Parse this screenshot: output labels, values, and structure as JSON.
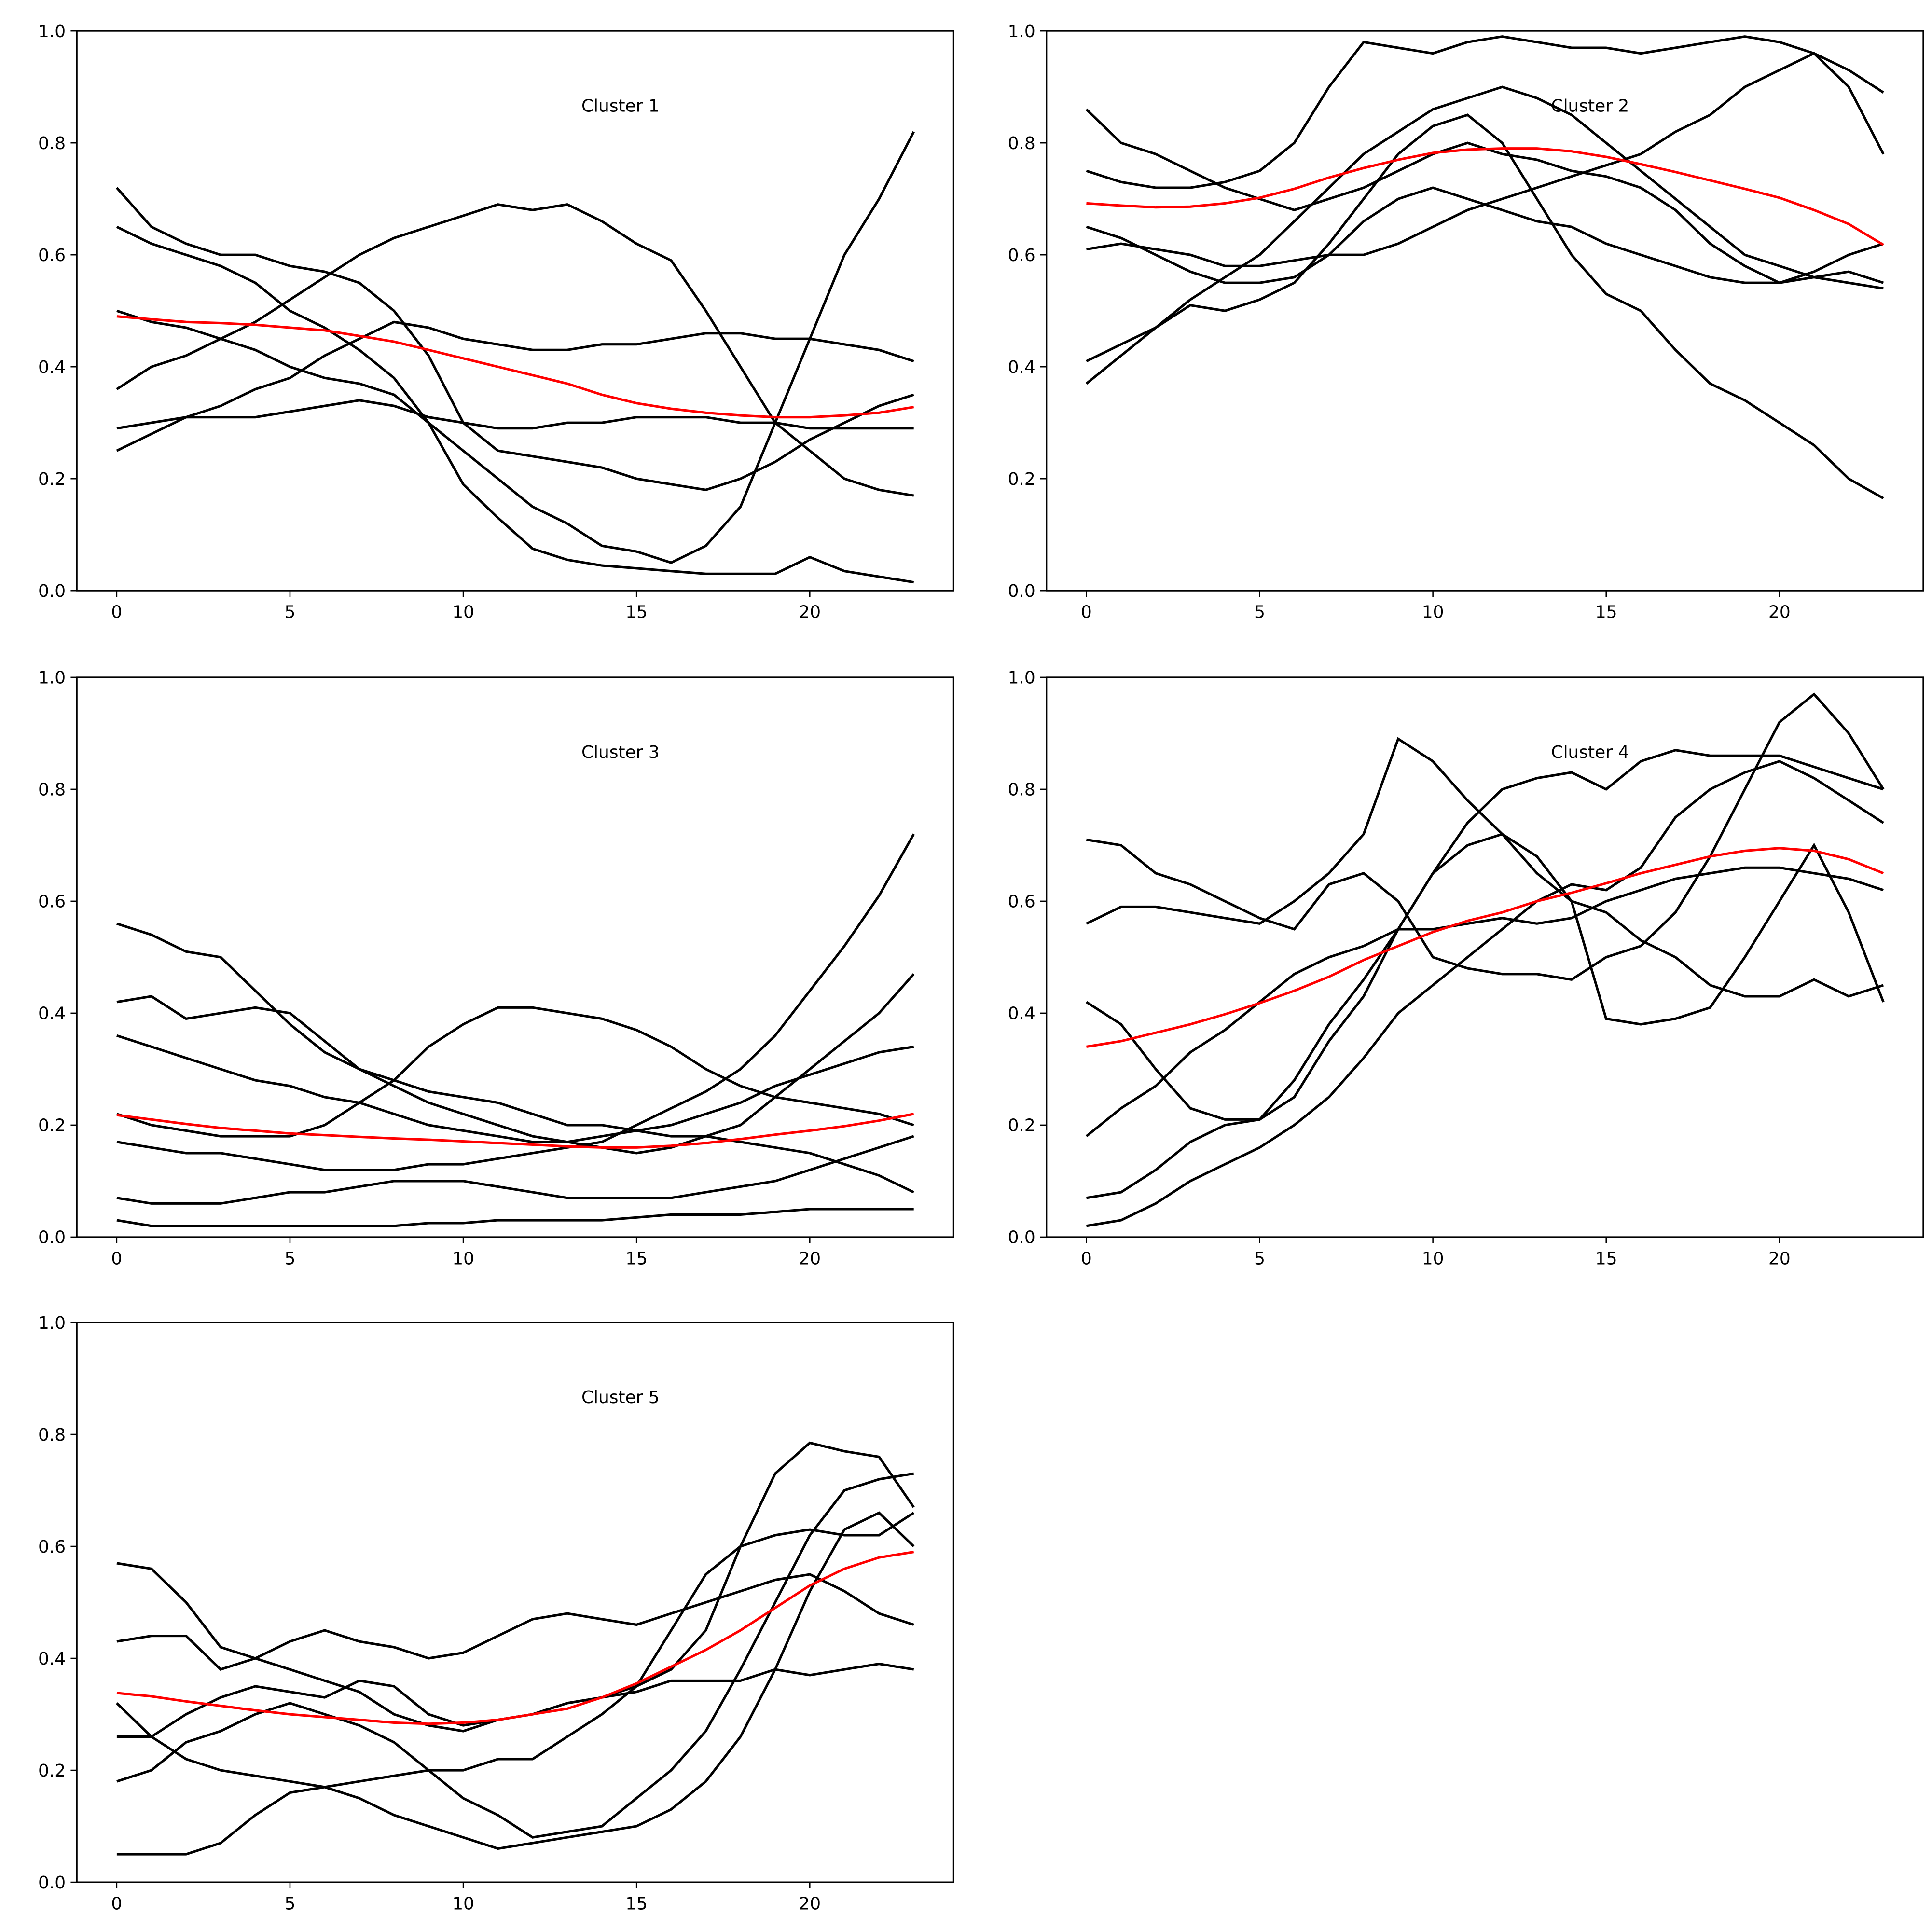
{
  "chart_data": [
    {
      "type": "line",
      "title": "Cluster 1",
      "xlim": [
        -1.15,
        24.15
      ],
      "ylim": [
        0,
        1
      ],
      "xticks": [
        "0",
        "5",
        "10",
        "15",
        "20"
      ],
      "yticks": [
        "0.0",
        "0.2",
        "0.4",
        "0.6",
        "0.8",
        "1.0"
      ],
      "mean_color": "#ff0000",
      "line_color": "#000000",
      "mean": [
        0.49,
        0.485,
        0.48,
        0.478,
        0.475,
        0.47,
        0.465,
        0.455,
        0.445,
        0.43,
        0.415,
        0.4,
        0.385,
        0.37,
        0.35,
        0.335,
        0.325,
        0.318,
        0.313,
        0.31,
        0.31,
        0.313,
        0.318,
        0.328
      ],
      "series": [
        [
          0.72,
          0.65,
          0.62,
          0.6,
          0.6,
          0.58,
          0.57,
          0.55,
          0.5,
          0.42,
          0.3,
          0.25,
          0.24,
          0.23,
          0.22,
          0.2,
          0.19,
          0.18,
          0.2,
          0.23,
          0.27,
          0.3,
          0.33,
          0.35
        ],
        [
          0.65,
          0.62,
          0.6,
          0.58,
          0.55,
          0.5,
          0.47,
          0.43,
          0.38,
          0.3,
          0.19,
          0.13,
          0.075,
          0.055,
          0.045,
          0.04,
          0.035,
          0.03,
          0.03,
          0.03,
          0.06,
          0.035,
          0.025,
          0.015
        ],
        [
          0.5,
          0.48,
          0.47,
          0.45,
          0.43,
          0.4,
          0.38,
          0.37,
          0.35,
          0.3,
          0.25,
          0.2,
          0.15,
          0.12,
          0.08,
          0.07,
          0.05,
          0.08,
          0.15,
          0.3,
          0.45,
          0.6,
          0.7,
          0.82
        ],
        [
          0.36,
          0.4,
          0.42,
          0.45,
          0.48,
          0.52,
          0.56,
          0.6,
          0.63,
          0.65,
          0.67,
          0.69,
          0.68,
          0.69,
          0.66,
          0.62,
          0.59,
          0.5,
          0.4,
          0.3,
          0.25,
          0.2,
          0.18,
          0.17
        ],
        [
          0.29,
          0.3,
          0.31,
          0.31,
          0.31,
          0.32,
          0.33,
          0.34,
          0.33,
          0.31,
          0.3,
          0.29,
          0.29,
          0.3,
          0.3,
          0.31,
          0.31,
          0.31,
          0.3,
          0.3,
          0.29,
          0.29,
          0.29,
          0.29
        ],
        [
          0.25,
          0.28,
          0.31,
          0.33,
          0.36,
          0.38,
          0.42,
          0.45,
          0.48,
          0.47,
          0.45,
          0.44,
          0.43,
          0.43,
          0.44,
          0.44,
          0.45,
          0.46,
          0.46,
          0.45,
          0.45,
          0.44,
          0.43,
          0.41
        ]
      ]
    },
    {
      "type": "line",
      "title": "Cluster 2",
      "xlim": [
        -1.15,
        24.15
      ],
      "ylim": [
        0,
        1
      ],
      "xticks": [
        "0",
        "5",
        "10",
        "15",
        "20"
      ],
      "yticks": [
        "0.0",
        "0.2",
        "0.4",
        "0.6",
        "0.8",
        "1.0"
      ],
      "mean_color": "#ff0000",
      "line_color": "#000000",
      "mean": [
        0.692,
        0.688,
        0.685,
        0.686,
        0.692,
        0.702,
        0.718,
        0.738,
        0.755,
        0.77,
        0.782,
        0.788,
        0.79,
        0.79,
        0.785,
        0.775,
        0.762,
        0.748,
        0.733,
        0.718,
        0.702,
        0.68,
        0.655,
        0.618
      ],
      "series": [
        [
          0.37,
          0.42,
          0.47,
          0.52,
          0.56,
          0.6,
          0.66,
          0.72,
          0.78,
          0.82,
          0.86,
          0.88,
          0.9,
          0.88,
          0.85,
          0.8,
          0.75,
          0.7,
          0.65,
          0.6,
          0.58,
          0.56,
          0.55,
          0.54
        ],
        [
          0.41,
          0.44,
          0.47,
          0.51,
          0.5,
          0.52,
          0.55,
          0.62,
          0.7,
          0.78,
          0.83,
          0.85,
          0.8,
          0.7,
          0.6,
          0.53,
          0.5,
          0.43,
          0.37,
          0.34,
          0.3,
          0.26,
          0.2,
          0.165
        ],
        [
          0.75,
          0.73,
          0.72,
          0.72,
          0.73,
          0.75,
          0.8,
          0.9,
          0.98,
          0.97,
          0.96,
          0.98,
          0.99,
          0.98,
          0.97,
          0.97,
          0.96,
          0.97,
          0.98,
          0.99,
          0.98,
          0.96,
          0.93,
          0.89
        ],
        [
          0.86,
          0.8,
          0.78,
          0.75,
          0.72,
          0.7,
          0.68,
          0.7,
          0.72,
          0.75,
          0.78,
          0.8,
          0.78,
          0.77,
          0.75,
          0.74,
          0.72,
          0.68,
          0.62,
          0.58,
          0.55,
          0.57,
          0.6,
          0.62
        ],
        [
          0.61,
          0.62,
          0.61,
          0.6,
          0.58,
          0.58,
          0.59,
          0.6,
          0.6,
          0.62,
          0.65,
          0.68,
          0.7,
          0.72,
          0.74,
          0.76,
          0.78,
          0.82,
          0.85,
          0.9,
          0.93,
          0.96,
          0.9,
          0.78
        ],
        [
          0.65,
          0.63,
          0.6,
          0.57,
          0.55,
          0.55,
          0.56,
          0.6,
          0.66,
          0.7,
          0.72,
          0.7,
          0.68,
          0.66,
          0.65,
          0.62,
          0.6,
          0.58,
          0.56,
          0.55,
          0.55,
          0.56,
          0.57,
          0.55
        ]
      ]
    },
    {
      "type": "line",
      "title": "Cluster 3",
      "xlim": [
        -1.15,
        24.15
      ],
      "ylim": [
        0,
        1
      ],
      "xticks": [
        "0",
        "5",
        "10",
        "15",
        "20"
      ],
      "yticks": [
        "0.0",
        "0.2",
        "0.4",
        "0.6",
        "0.8",
        "1.0"
      ],
      "mean_color": "#ff0000",
      "line_color": "#000000",
      "mean": [
        0.218,
        0.21,
        0.202,
        0.195,
        0.19,
        0.185,
        0.182,
        0.179,
        0.176,
        0.174,
        0.171,
        0.168,
        0.165,
        0.162,
        0.16,
        0.16,
        0.163,
        0.168,
        0.175,
        0.183,
        0.19,
        0.198,
        0.208,
        0.22
      ],
      "series": [
        [
          0.56,
          0.54,
          0.51,
          0.5,
          0.44,
          0.38,
          0.33,
          0.3,
          0.28,
          0.26,
          0.25,
          0.24,
          0.22,
          0.2,
          0.2,
          0.19,
          0.18,
          0.18,
          0.17,
          0.16,
          0.15,
          0.13,
          0.11,
          0.08
        ],
        [
          0.17,
          0.16,
          0.15,
          0.15,
          0.14,
          0.13,
          0.12,
          0.12,
          0.12,
          0.13,
          0.13,
          0.14,
          0.15,
          0.16,
          0.17,
          0.2,
          0.23,
          0.26,
          0.3,
          0.36,
          0.44,
          0.52,
          0.61,
          0.72
        ],
        [
          0.22,
          0.2,
          0.19,
          0.18,
          0.18,
          0.18,
          0.2,
          0.24,
          0.28,
          0.34,
          0.38,
          0.41,
          0.41,
          0.4,
          0.39,
          0.37,
          0.34,
          0.3,
          0.27,
          0.25,
          0.24,
          0.23,
          0.22,
          0.2
        ],
        [
          0.03,
          0.02,
          0.02,
          0.02,
          0.02,
          0.02,
          0.02,
          0.02,
          0.02,
          0.025,
          0.025,
          0.03,
          0.03,
          0.03,
          0.03,
          0.035,
          0.04,
          0.04,
          0.04,
          0.045,
          0.05,
          0.05,
          0.05,
          0.05
        ],
        [
          0.42,
          0.43,
          0.39,
          0.4,
          0.41,
          0.4,
          0.35,
          0.3,
          0.27,
          0.24,
          0.22,
          0.2,
          0.18,
          0.17,
          0.16,
          0.15,
          0.16,
          0.18,
          0.2,
          0.25,
          0.3,
          0.35,
          0.4,
          0.47
        ],
        [
          0.07,
          0.06,
          0.06,
          0.06,
          0.07,
          0.08,
          0.08,
          0.09,
          0.1,
          0.1,
          0.1,
          0.09,
          0.08,
          0.07,
          0.07,
          0.07,
          0.07,
          0.08,
          0.09,
          0.1,
          0.12,
          0.14,
          0.16,
          0.18
        ],
        [
          0.36,
          0.34,
          0.32,
          0.3,
          0.28,
          0.27,
          0.25,
          0.24,
          0.22,
          0.2,
          0.19,
          0.18,
          0.17,
          0.17,
          0.18,
          0.19,
          0.2,
          0.22,
          0.24,
          0.27,
          0.29,
          0.31,
          0.33,
          0.34
        ]
      ]
    },
    {
      "type": "line",
      "title": "Cluster 4",
      "xlim": [
        -1.15,
        24.15
      ],
      "ylim": [
        0,
        1
      ],
      "xticks": [
        "0",
        "5",
        "10",
        "15",
        "20"
      ],
      "yticks": [
        "0.0",
        "0.2",
        "0.4",
        "0.6",
        "0.8",
        "1.0"
      ],
      "mean_color": "#ff0000",
      "line_color": "#000000",
      "mean": [
        0.34,
        0.35,
        0.365,
        0.38,
        0.398,
        0.418,
        0.44,
        0.465,
        0.495,
        0.52,
        0.545,
        0.565,
        0.58,
        0.6,
        0.615,
        0.632,
        0.65,
        0.665,
        0.68,
        0.69,
        0.695,
        0.69,
        0.675,
        0.65
      ],
      "series": [
        [
          0.02,
          0.03,
          0.06,
          0.1,
          0.13,
          0.16,
          0.2,
          0.25,
          0.32,
          0.4,
          0.45,
          0.5,
          0.55,
          0.6,
          0.63,
          0.62,
          0.66,
          0.75,
          0.8,
          0.83,
          0.85,
          0.82,
          0.78,
          0.74
        ],
        [
          0.07,
          0.08,
          0.12,
          0.17,
          0.2,
          0.21,
          0.28,
          0.38,
          0.46,
          0.55,
          0.65,
          0.74,
          0.8,
          0.82,
          0.83,
          0.8,
          0.85,
          0.87,
          0.86,
          0.86,
          0.86,
          0.84,
          0.82,
          0.8
        ],
        [
          0.71,
          0.7,
          0.65,
          0.63,
          0.6,
          0.57,
          0.55,
          0.63,
          0.65,
          0.6,
          0.5,
          0.48,
          0.47,
          0.47,
          0.46,
          0.5,
          0.52,
          0.58,
          0.68,
          0.8,
          0.92,
          0.97,
          0.9,
          0.8
        ],
        [
          0.42,
          0.38,
          0.3,
          0.23,
          0.21,
          0.21,
          0.25,
          0.35,
          0.43,
          0.55,
          0.65,
          0.7,
          0.72,
          0.68,
          0.6,
          0.39,
          0.38,
          0.39,
          0.41,
          0.5,
          0.6,
          0.7,
          0.58,
          0.42
        ],
        [
          0.56,
          0.59,
          0.59,
          0.58,
          0.57,
          0.56,
          0.6,
          0.65,
          0.72,
          0.89,
          0.85,
          0.78,
          0.72,
          0.65,
          0.6,
          0.58,
          0.53,
          0.5,
          0.45,
          0.43,
          0.43,
          0.46,
          0.43,
          0.45
        ],
        [
          0.18,
          0.23,
          0.27,
          0.33,
          0.37,
          0.42,
          0.47,
          0.5,
          0.52,
          0.55,
          0.55,
          0.56,
          0.57,
          0.56,
          0.57,
          0.6,
          0.62,
          0.64,
          0.65,
          0.66,
          0.66,
          0.65,
          0.64,
          0.62
        ]
      ]
    },
    {
      "type": "line",
      "title": "Cluster 5",
      "xlim": [
        -1.15,
        24.15
      ],
      "ylim": [
        0,
        1
      ],
      "xticks": [
        "0",
        "5",
        "10",
        "15",
        "20"
      ],
      "yticks": [
        "0.0",
        "0.2",
        "0.4",
        "0.6",
        "0.8",
        "1.0"
      ],
      "mean_color": "#ff0000",
      "line_color": "#000000",
      "mean": [
        0.338,
        0.332,
        0.323,
        0.315,
        0.307,
        0.3,
        0.295,
        0.29,
        0.285,
        0.283,
        0.285,
        0.29,
        0.3,
        0.31,
        0.33,
        0.355,
        0.385,
        0.415,
        0.45,
        0.49,
        0.53,
        0.56,
        0.58,
        0.59
      ],
      "series": [
        [
          0.57,
          0.56,
          0.5,
          0.42,
          0.4,
          0.38,
          0.36,
          0.34,
          0.3,
          0.28,
          0.27,
          0.29,
          0.3,
          0.32,
          0.33,
          0.35,
          0.38,
          0.45,
          0.6,
          0.73,
          0.785,
          0.77,
          0.76,
          0.67
        ],
        [
          0.05,
          0.05,
          0.05,
          0.07,
          0.12,
          0.16,
          0.17,
          0.18,
          0.19,
          0.2,
          0.2,
          0.22,
          0.22,
          0.26,
          0.3,
          0.35,
          0.45,
          0.55,
          0.6,
          0.62,
          0.63,
          0.62,
          0.62,
          0.66
        ],
        [
          0.18,
          0.2,
          0.25,
          0.27,
          0.3,
          0.32,
          0.3,
          0.28,
          0.25,
          0.2,
          0.15,
          0.12,
          0.08,
          0.09,
          0.1,
          0.15,
          0.2,
          0.27,
          0.38,
          0.5,
          0.62,
          0.7,
          0.72,
          0.73
        ],
        [
          0.32,
          0.26,
          0.22,
          0.2,
          0.19,
          0.18,
          0.17,
          0.15,
          0.12,
          0.1,
          0.08,
          0.06,
          0.07,
          0.08,
          0.09,
          0.1,
          0.13,
          0.18,
          0.26,
          0.38,
          0.52,
          0.63,
          0.66,
          0.6
        ],
        [
          0.43,
          0.44,
          0.44,
          0.38,
          0.4,
          0.43,
          0.45,
          0.43,
          0.42,
          0.4,
          0.41,
          0.44,
          0.47,
          0.48,
          0.47,
          0.46,
          0.48,
          0.5,
          0.52,
          0.54,
          0.55,
          0.52,
          0.48,
          0.46
        ],
        [
          0.26,
          0.26,
          0.3,
          0.33,
          0.35,
          0.34,
          0.33,
          0.36,
          0.35,
          0.3,
          0.28,
          0.29,
          0.3,
          0.32,
          0.33,
          0.34,
          0.36,
          0.36,
          0.36,
          0.38,
          0.37,
          0.38,
          0.39,
          0.38
        ]
      ]
    }
  ]
}
